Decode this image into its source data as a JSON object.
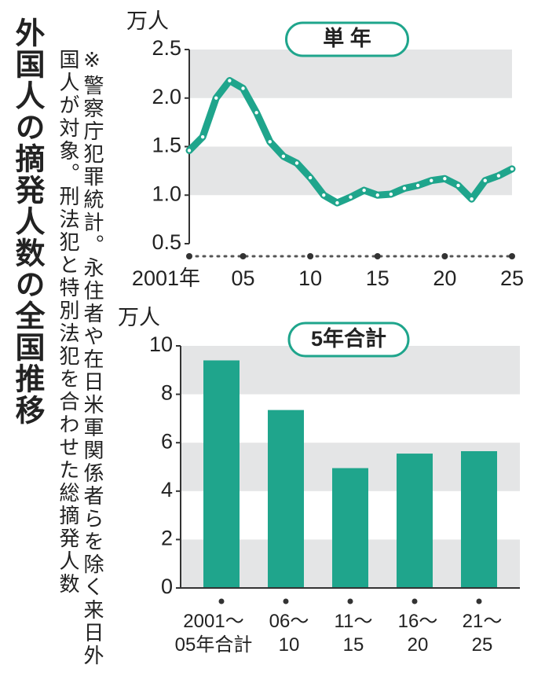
{
  "title": "外国人の摘発人数の全国推移",
  "note": "※警察庁犯罪統計。永住者や在日米軍関係者らを除く来日外国人が対象。刑法犯と特別法犯を合わせた総摘発人数",
  "chart_data": [
    {
      "type": "line",
      "y_label": "万人",
      "x": [
        2001,
        2002,
        2003,
        2004,
        2005,
        2006,
        2007,
        2008,
        2009,
        2010,
        2011,
        2012,
        2013,
        2014,
        2015,
        2016,
        2017,
        2018,
        2019,
        2020,
        2021,
        2022,
        2023,
        2024,
        2025
      ],
      "series": [
        {
          "name": "単 年",
          "color": "#1fa58c",
          "values": [
            1.46,
            1.6,
            2.0,
            2.18,
            2.1,
            1.85,
            1.55,
            1.4,
            1.33,
            1.18,
            1.0,
            0.92,
            0.98,
            1.05,
            1.0,
            1.01,
            1.07,
            1.1,
            1.15,
            1.17,
            1.1,
            0.96,
            1.15,
            1.2,
            1.27
          ]
        }
      ],
      "xlim": [
        2001,
        2025
      ],
      "xticks": [
        {
          "value": 2001,
          "label": "2001年"
        },
        {
          "value": 2005,
          "label": "05"
        },
        {
          "value": 2010,
          "label": "10"
        },
        {
          "value": 2015,
          "label": "15"
        },
        {
          "value": 2020,
          "label": "20"
        },
        {
          "value": 2025,
          "label": "25"
        }
      ],
      "ylim": [
        0.5,
        2.5
      ],
      "yticks": [
        0.5,
        {
          "value": 1,
          "label": "1.0"
        },
        1.5,
        {
          "value": 2,
          "label": "2.0"
        },
        2.5
      ],
      "grid": "bands"
    },
    {
      "type": "bar",
      "y_label": "万人",
      "categories": [
        "2001～\n05年合計",
        "06～\n10",
        "11～\n15",
        "16～\n20",
        "21～\n25"
      ],
      "series": [
        {
          "name": "5年合計",
          "color": "#1fa58c",
          "values": [
            9.4,
            7.35,
            4.95,
            5.55,
            5.65
          ]
        }
      ],
      "ylim": [
        0,
        10
      ],
      "yticks": [
        0,
        2,
        4,
        6,
        8,
        10
      ],
      "grid": "bands"
    }
  ]
}
